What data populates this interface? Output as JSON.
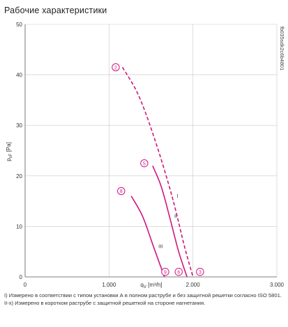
{
  "title": "Рабочие характеристики",
  "colors": {
    "curve": "#d0157f",
    "grid": "#c8c8c8",
    "axis": "#555555",
    "text": "#333333"
  },
  "chart_data": {
    "type": "line",
    "xlabel": "q",
    "xlabel_sub": "V",
    "xlabel_unit": " [m³/h]",
    "ylabel": "p",
    "ylabel_sub": "sF",
    "ylabel_unit": " [Pa]",
    "xlim": [
      0,
      3000
    ],
    "ylim": [
      0,
      50
    ],
    "x_ticks": [
      0,
      1000,
      2000,
      3000
    ],
    "x_tick_labels": [
      "0",
      "1.000",
      "2.000",
      "3.000"
    ],
    "y_ticks": [
      0,
      10,
      20,
      30,
      40,
      50
    ],
    "y_tick_labels": [
      "0",
      "10",
      "20",
      "30",
      "40",
      "50"
    ],
    "grid": true,
    "doc_code": "fb035sdk2c6b4801",
    "series": [
      {
        "name": "I",
        "style": "dashed",
        "x": [
          1160,
          1350,
          1550,
          1750,
          1900,
          2000
        ],
        "y": [
          41.5,
          36,
          27,
          16,
          6,
          0
        ]
      },
      {
        "name": "II",
        "style": "solid",
        "x": [
          1520,
          1620,
          1720,
          1830,
          1930
        ],
        "y": [
          22,
          18,
          12,
          5,
          0
        ]
      },
      {
        "name": "III",
        "style": "solid",
        "x": [
          1265,
          1400,
          1530,
          1660
        ],
        "y": [
          16,
          12,
          6,
          0
        ]
      }
    ],
    "operating_points": [
      {
        "label": "2",
        "x": 1080,
        "y": 41.5
      },
      {
        "label": "5",
        "x": 1420,
        "y": 22.5
      },
      {
        "label": "8",
        "x": 1145,
        "y": 17
      },
      {
        "label": "9",
        "x": 1670,
        "y": 1
      },
      {
        "label": "6",
        "x": 1830,
        "y": 1
      },
      {
        "label": "3",
        "x": 2085,
        "y": 1
      }
    ]
  },
  "notes": [
    "I) Измерено в соответствии с типом установки А в полном раструбе и без защитной решетки согласно ISO 5801.",
    "II-x) Измерено в коротком раструбе с защитной решеткой на стороне нагнетания."
  ]
}
